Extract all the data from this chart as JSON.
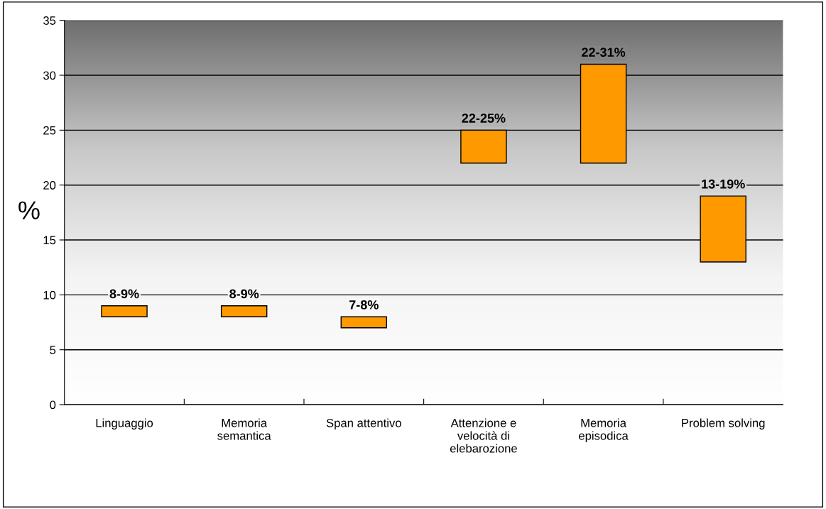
{
  "chart_data": {
    "type": "bar",
    "ylabel": "%",
    "categories": [
      "Linguaggio",
      "Memoria\nsemantica",
      "Span attentivo",
      "Attenzione e\nvelocità di\nelebarozione",
      "Memoria\nepisodica",
      "Problem solving"
    ],
    "base": [
      8,
      8,
      7,
      22,
      22,
      13
    ],
    "values": [
      1,
      1,
      1,
      3,
      9,
      6
    ],
    "annotations": [
      {
        "text": "8-9%",
        "x": "Linguaggio",
        "y": 9
      },
      {
        "text": "8-9%",
        "x": "Memoria\nsemantica",
        "y": 9
      },
      {
        "text": "7-8%",
        "x": "Span attentivo",
        "y": 8
      },
      {
        "text": "22-25%",
        "x": "Attenzione e\nvelocità di\nelebarozione",
        "y": 25
      },
      {
        "text": "22-31%",
        "x": "Memoria\nepisodica",
        "y": 31
      },
      {
        "text": "13-19%",
        "x": "Problem solving",
        "y": 19
      }
    ],
    "color": "#ff9900",
    "ylim": [
      0,
      35
    ],
    "yticks": [
      0,
      5,
      10,
      15,
      20,
      25,
      30,
      35
    ],
    "grid": "y",
    "legend": false
  }
}
